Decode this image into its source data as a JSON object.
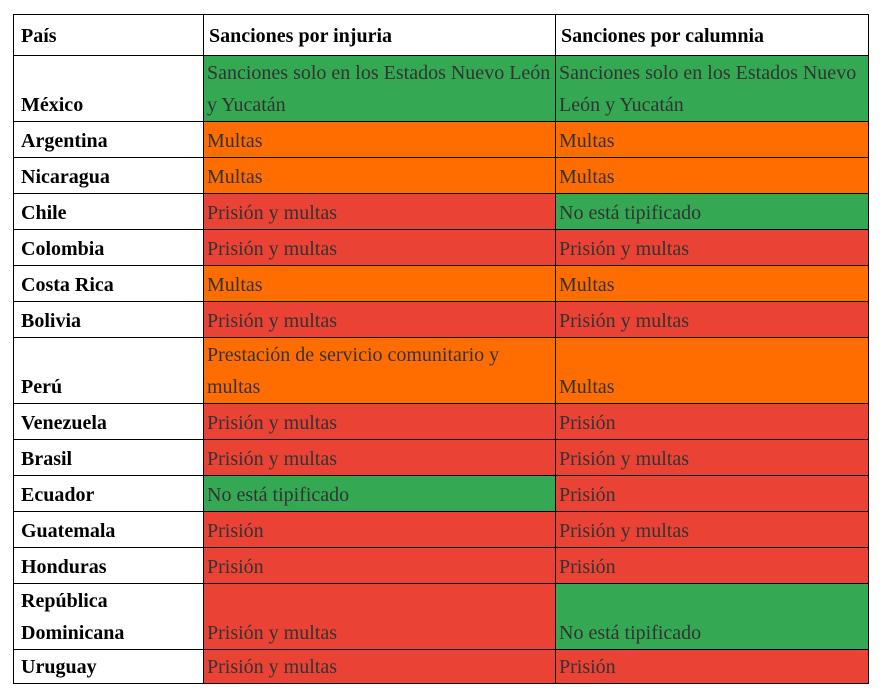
{
  "colors": {
    "verde": "#34a853",
    "naranja": "#ff6d01",
    "rojo": "#ea4335"
  },
  "header": {
    "pais": "País",
    "injuria": "Sanciones por injuria",
    "calumnia": "Sanciones por calumnia"
  },
  "rows": [
    {
      "pais": "México",
      "injuria": "Sanciones solo en los Estados Nuevo León y Yucatán",
      "injuria_color": "verde",
      "calumnia": "Sanciones solo en los Estados Nuevo León y Yucatán",
      "calumnia_color": "verde",
      "lines": 2
    },
    {
      "pais": "Argentina",
      "injuria": "Multas",
      "injuria_color": "naranja",
      "calumnia": "Multas",
      "calumnia_color": "naranja",
      "lines": 1
    },
    {
      "pais": "Nicaragua",
      "injuria": "Multas",
      "injuria_color": "naranja",
      "calumnia": "Multas",
      "calumnia_color": "naranja",
      "lines": 1
    },
    {
      "pais": "Chile",
      "injuria": "Prisión y multas",
      "injuria_color": "rojo",
      "calumnia": "No está tipificado",
      "calumnia_color": "verde",
      "lines": 1
    },
    {
      "pais": "Colombia",
      "injuria": "Prisión y multas",
      "injuria_color": "rojo",
      "calumnia": "Prisión y multas",
      "calumnia_color": "rojo",
      "lines": 1
    },
    {
      "pais": "Costa Rica",
      "injuria": "Multas",
      "injuria_color": "naranja",
      "calumnia": "Multas",
      "calumnia_color": "naranja",
      "lines": 1
    },
    {
      "pais": "Bolivia",
      "injuria": "Prisión y multas",
      "injuria_color": "rojo",
      "calumnia": "Prisión y multas",
      "calumnia_color": "rojo",
      "lines": 1
    },
    {
      "pais": "Perú",
      "injuria": "Prestación de servicio comunitario y multas",
      "injuria_color": "naranja",
      "calumnia": "Multas",
      "calumnia_color": "naranja",
      "lines": 2
    },
    {
      "pais": "Venezuela",
      "injuria": "Prisión y multas",
      "injuria_color": "rojo",
      "calumnia": "Prisión",
      "calumnia_color": "rojo",
      "lines": 1
    },
    {
      "pais": "Brasil",
      "injuria": "Prisión y multas",
      "injuria_color": "rojo",
      "calumnia": "Prisión y multas",
      "calumnia_color": "rojo",
      "lines": 1
    },
    {
      "pais": "Ecuador",
      "injuria": "No está tipificado",
      "injuria_color": "verde",
      "calumnia": "Prisión",
      "calumnia_color": "rojo",
      "lines": 1
    },
    {
      "pais": "Guatemala",
      "injuria": "Prisión",
      "injuria_color": "rojo",
      "calumnia": "Prisión y multas",
      "calumnia_color": "rojo",
      "lines": 1
    },
    {
      "pais": "Honduras",
      "injuria": "Prisión",
      "injuria_color": "rojo",
      "calumnia": "Prisión",
      "calumnia_color": "rojo",
      "lines": 1
    },
    {
      "pais": "República Dominicana",
      "injuria": "Prisión y multas",
      "injuria_color": "rojo",
      "calumnia": "No está tipificado",
      "calumnia_color": "verde",
      "lines": 2
    },
    {
      "pais": "Uruguay",
      "injuria": "Prisión y multas",
      "injuria_color": "rojo",
      "calumnia": "Prisión",
      "calumnia_color": "rojo",
      "lines": 1,
      "last": true
    }
  ]
}
